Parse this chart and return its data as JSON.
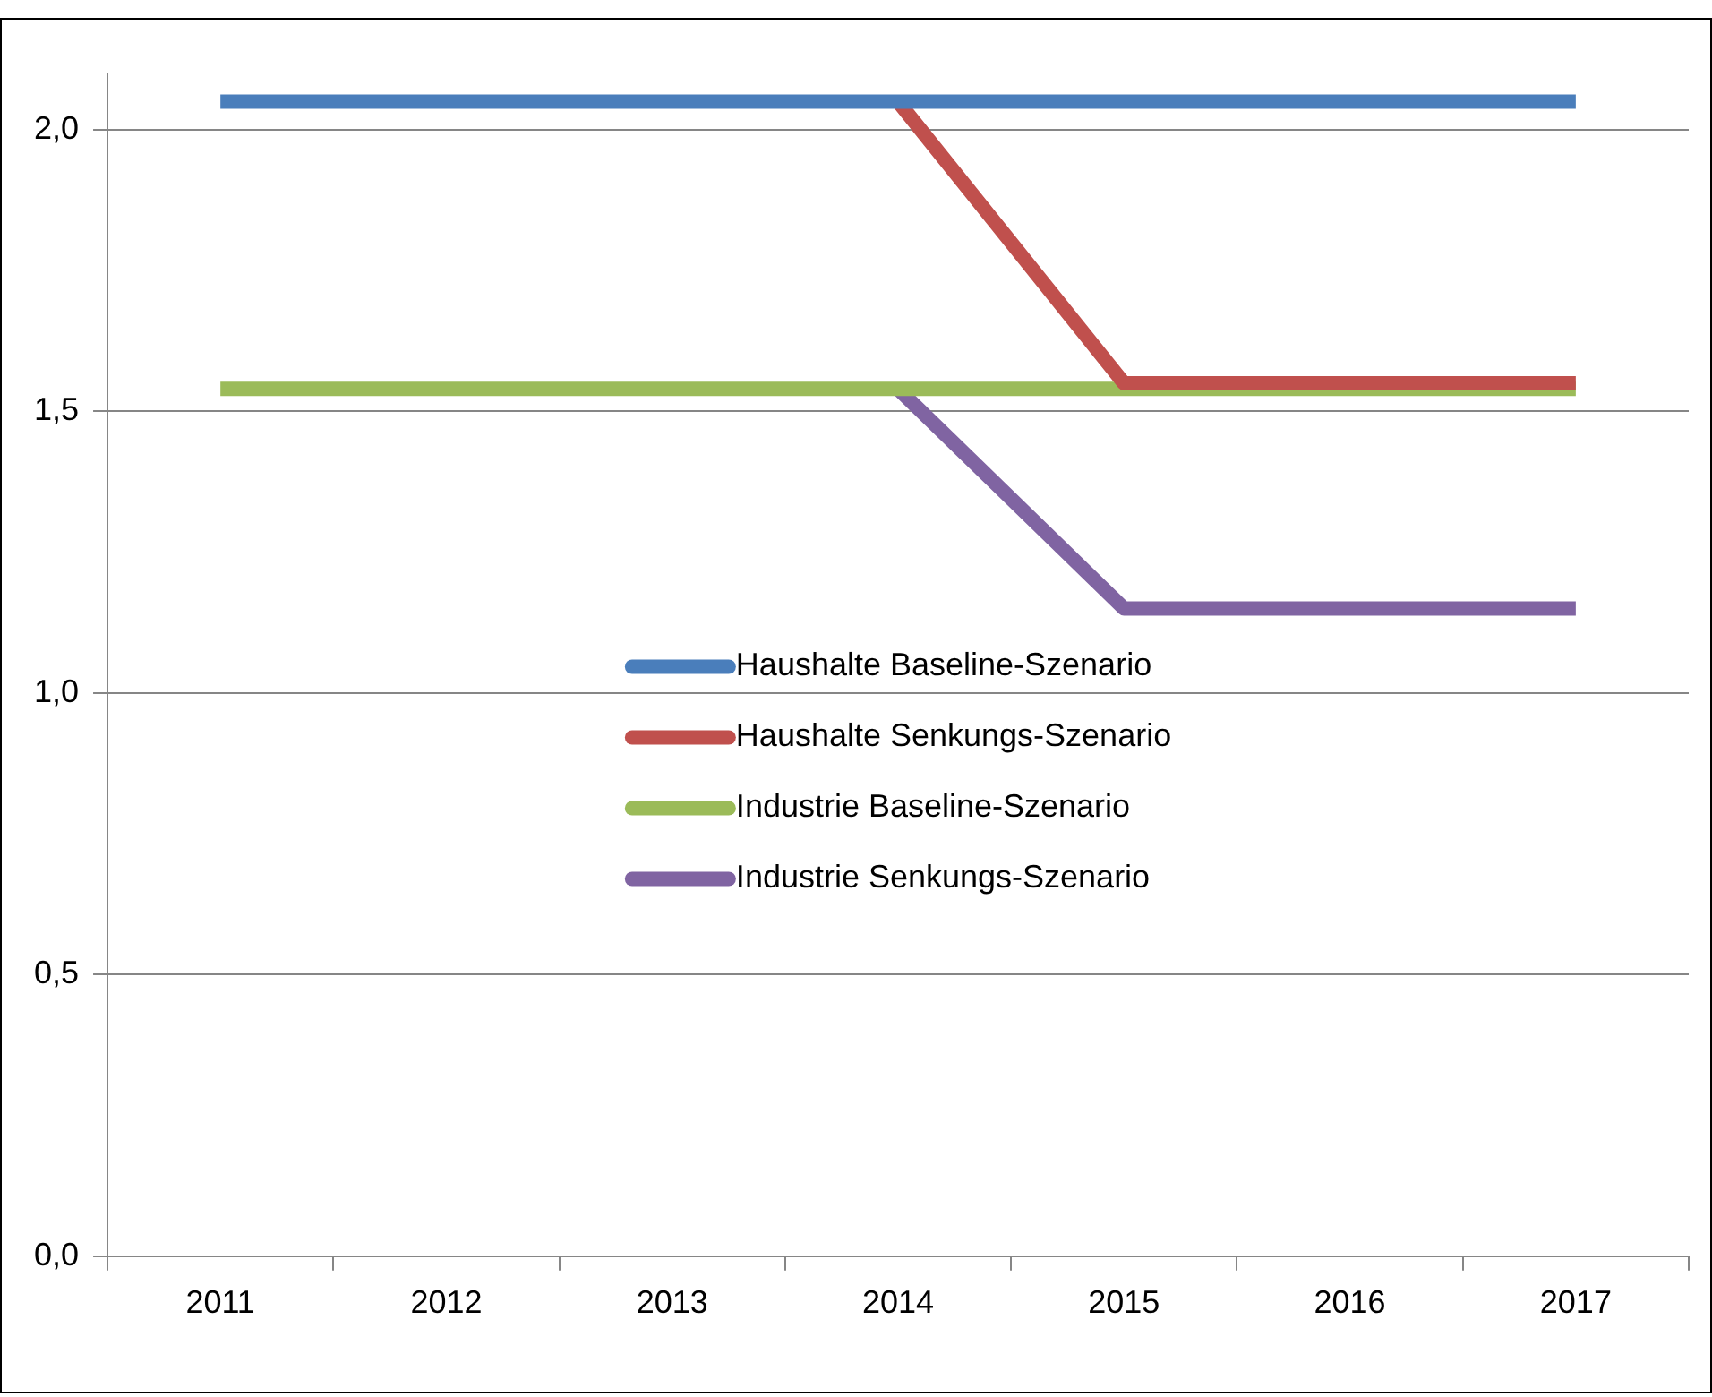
{
  "chart_data": {
    "type": "line",
    "categories": [
      "2011",
      "2012",
      "2013",
      "2014",
      "2015",
      "2016",
      "2017"
    ],
    "series": [
      {
        "name": "Haushalte Baseline-Szenario",
        "color": "#4a7ebb",
        "values": [
          2.05,
          2.05,
          2.05,
          2.05,
          2.05,
          2.05,
          2.05
        ]
      },
      {
        "name": "Haushalte Senkungs-Szenario",
        "color": "#c0504d",
        "values": [
          null,
          null,
          null,
          2.05,
          1.55,
          1.55,
          1.55
        ]
      },
      {
        "name": "Industrie Baseline-Szenario",
        "color": "#9bbb59",
        "values": [
          1.54,
          1.54,
          1.54,
          1.54,
          1.54,
          1.54,
          1.54
        ]
      },
      {
        "name": "Industrie Senkungs-Szenario",
        "color": "#8064a2",
        "values": [
          null,
          null,
          null,
          1.54,
          1.15,
          1.15,
          1.15
        ]
      }
    ],
    "ylim": [
      0,
      2.1
    ],
    "yticks": [
      {
        "value": 0,
        "label": "0,0"
      },
      {
        "value": 0.5,
        "label": "0,5"
      },
      {
        "value": 1,
        "label": "1,0"
      },
      {
        "value": 1.5,
        "label": "1,5"
      },
      {
        "value": 2,
        "label": "2,0"
      }
    ],
    "grid": "y",
    "legend": "center",
    "marker": "none",
    "line_style": "solid"
  }
}
